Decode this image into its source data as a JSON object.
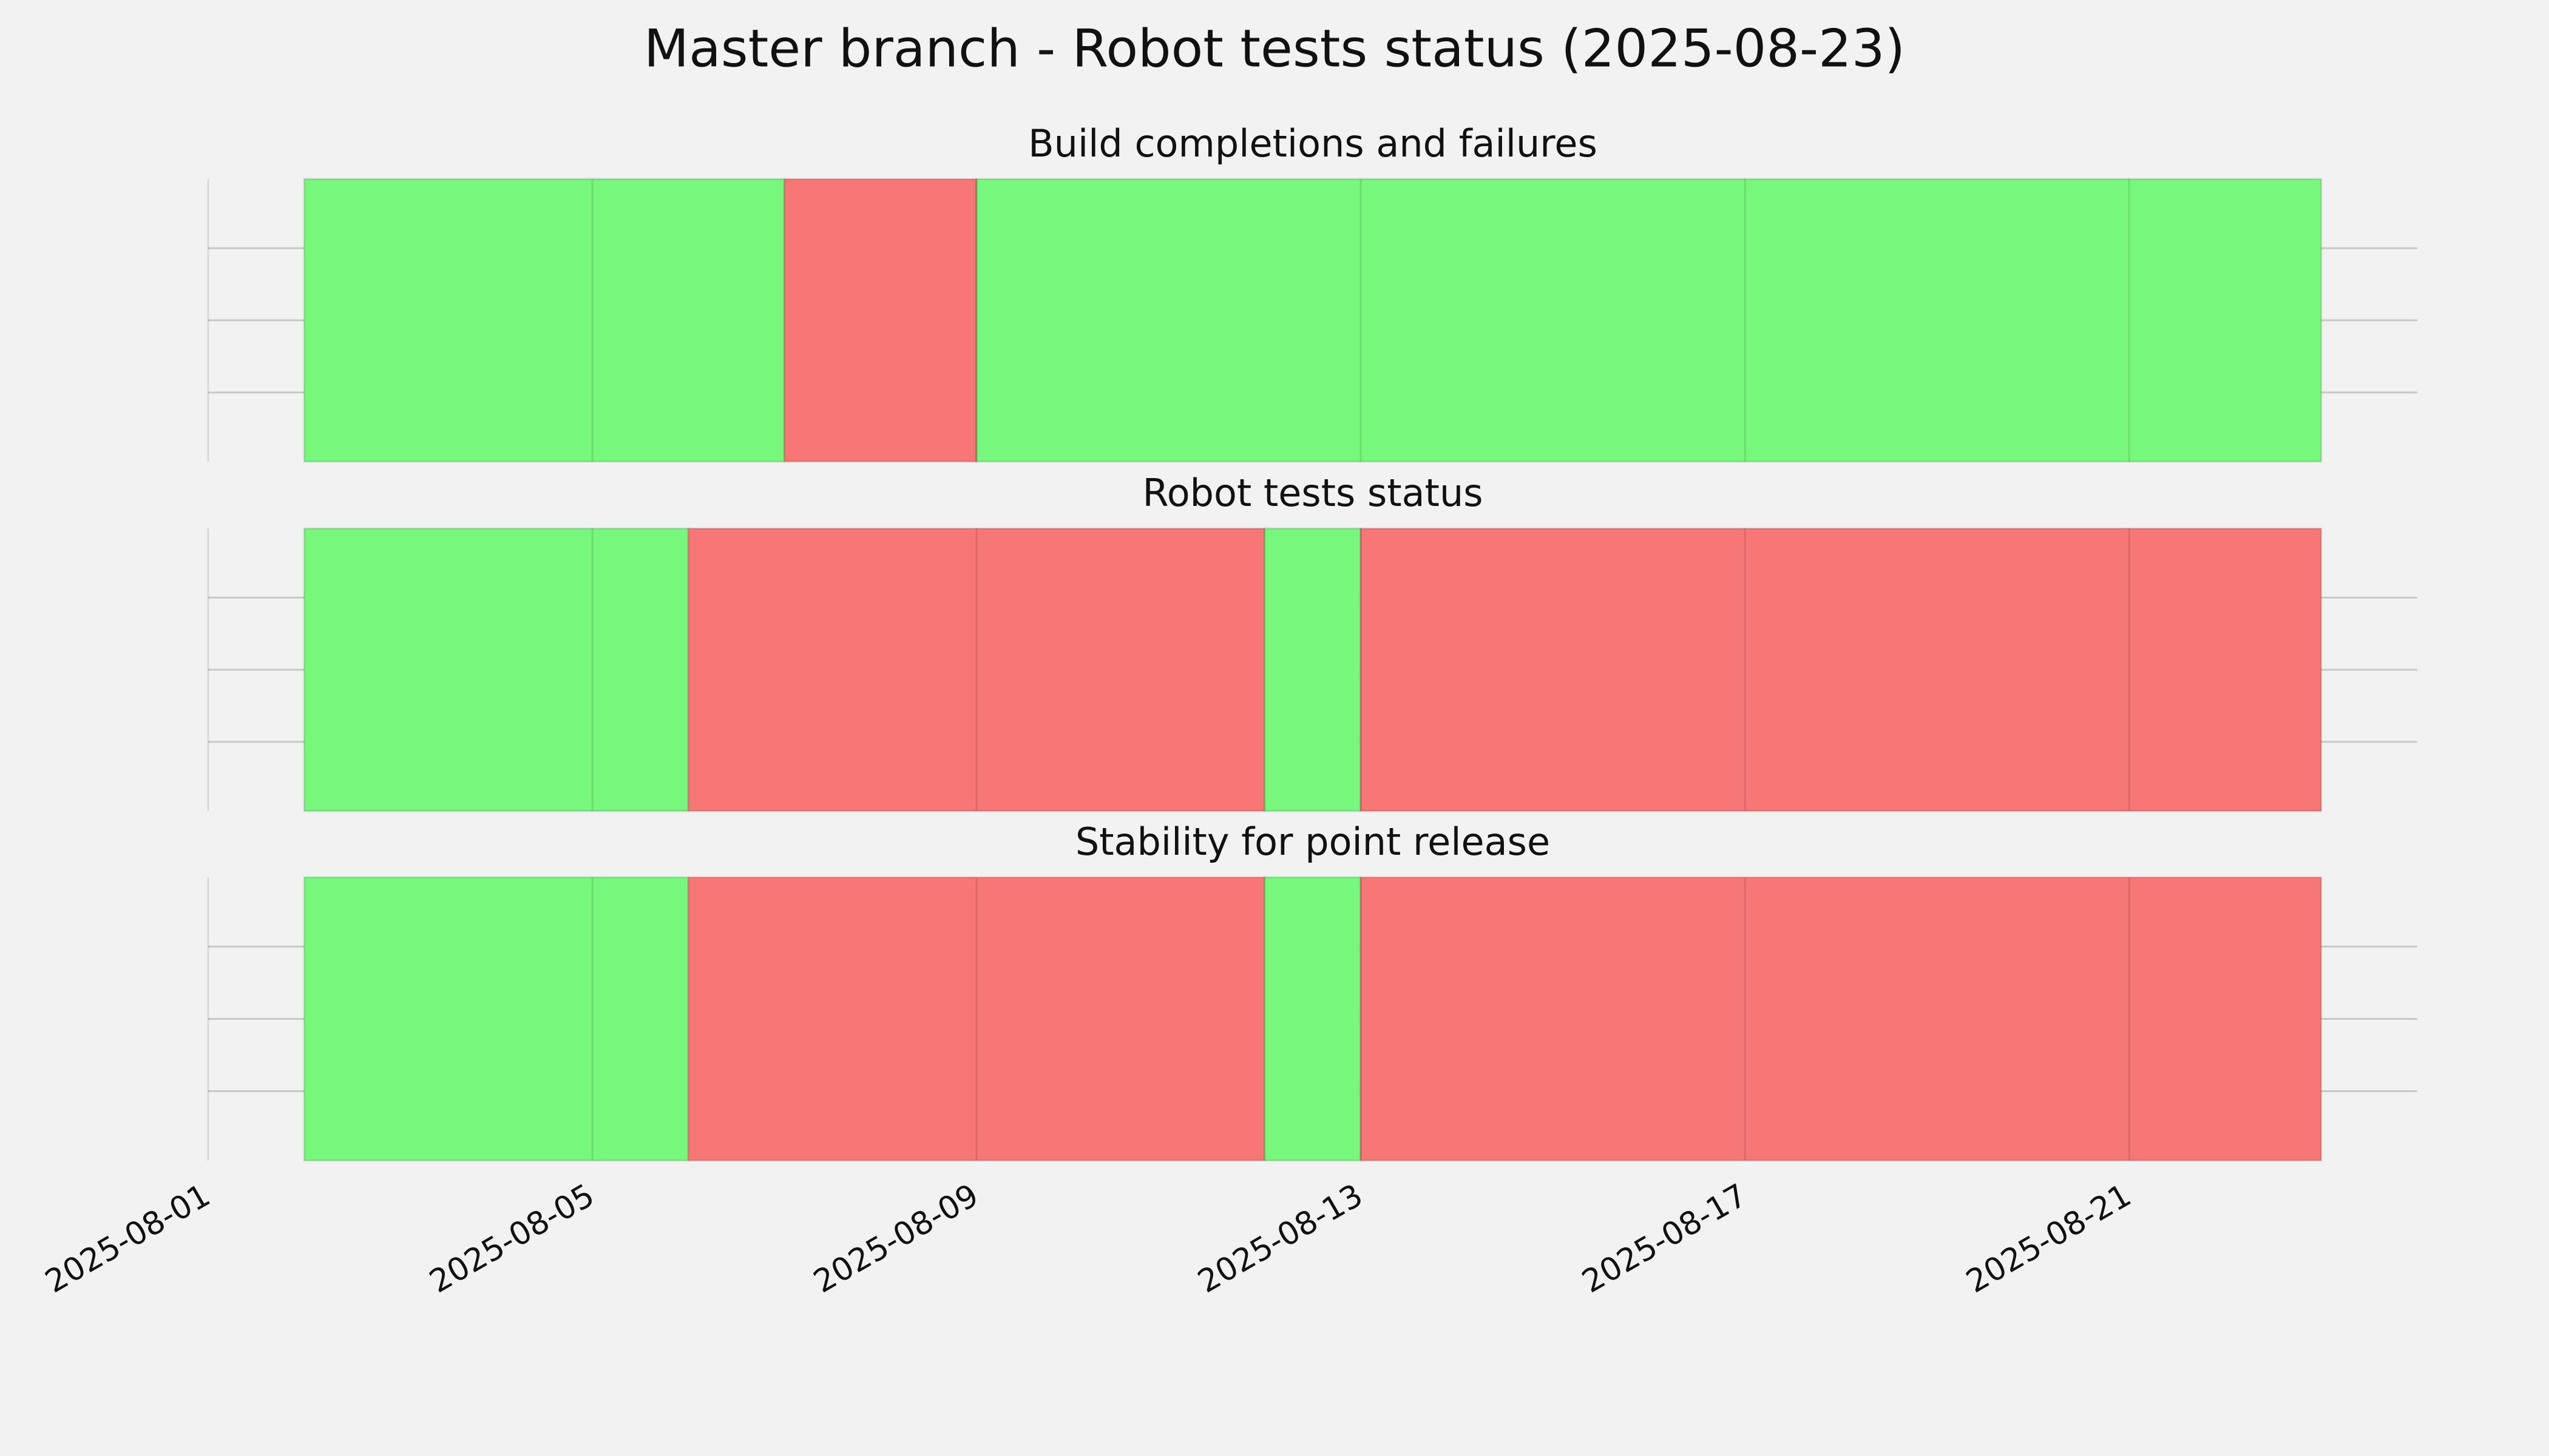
{
  "title": "Master branch - Robot tests status (2025-08-23)",
  "chart_data": [
    {
      "type": "timeline",
      "title": "Build completions and failures",
      "xlim": [
        "2025-08-01",
        "2025-08-24"
      ],
      "xticks": [
        "2025-08-01",
        "2025-08-05",
        "2025-08-09",
        "2025-08-13",
        "2025-08-17",
        "2025-08-21"
      ],
      "grid": true,
      "spans": [
        {
          "start": "2025-08-02",
          "end": "2025-08-07",
          "color": "#77f77b"
        },
        {
          "start": "2025-08-07",
          "end": "2025-08-09",
          "color": "#f77776"
        },
        {
          "start": "2025-08-09",
          "end": "2025-08-23",
          "color": "#77f77b"
        }
      ]
    },
    {
      "type": "timeline",
      "title": "Robot tests status",
      "xlim": [
        "2025-08-01",
        "2025-08-24"
      ],
      "xticks": [
        "2025-08-01",
        "2025-08-05",
        "2025-08-09",
        "2025-08-13",
        "2025-08-17",
        "2025-08-21"
      ],
      "grid": true,
      "spans": [
        {
          "start": "2025-08-02",
          "end": "2025-08-06",
          "color": "#77f77b"
        },
        {
          "start": "2025-08-06",
          "end": "2025-08-12",
          "color": "#f77776"
        },
        {
          "start": "2025-08-12",
          "end": "2025-08-13",
          "color": "#77f77b"
        },
        {
          "start": "2025-08-13",
          "end": "2025-08-23",
          "color": "#f77776"
        }
      ]
    },
    {
      "type": "timeline",
      "title": "Stability for point release",
      "xlim": [
        "2025-08-01",
        "2025-08-24"
      ],
      "xticks": [
        "2025-08-01",
        "2025-08-05",
        "2025-08-09",
        "2025-08-13",
        "2025-08-17",
        "2025-08-21"
      ],
      "grid": true,
      "spans": [
        {
          "start": "2025-08-02",
          "end": "2025-08-06",
          "color": "#77f77b"
        },
        {
          "start": "2025-08-06",
          "end": "2025-08-12",
          "color": "#f77776"
        },
        {
          "start": "2025-08-12",
          "end": "2025-08-13",
          "color": "#77f77b"
        },
        {
          "start": "2025-08-13",
          "end": "2025-08-23",
          "color": "#f77776"
        }
      ]
    }
  ]
}
